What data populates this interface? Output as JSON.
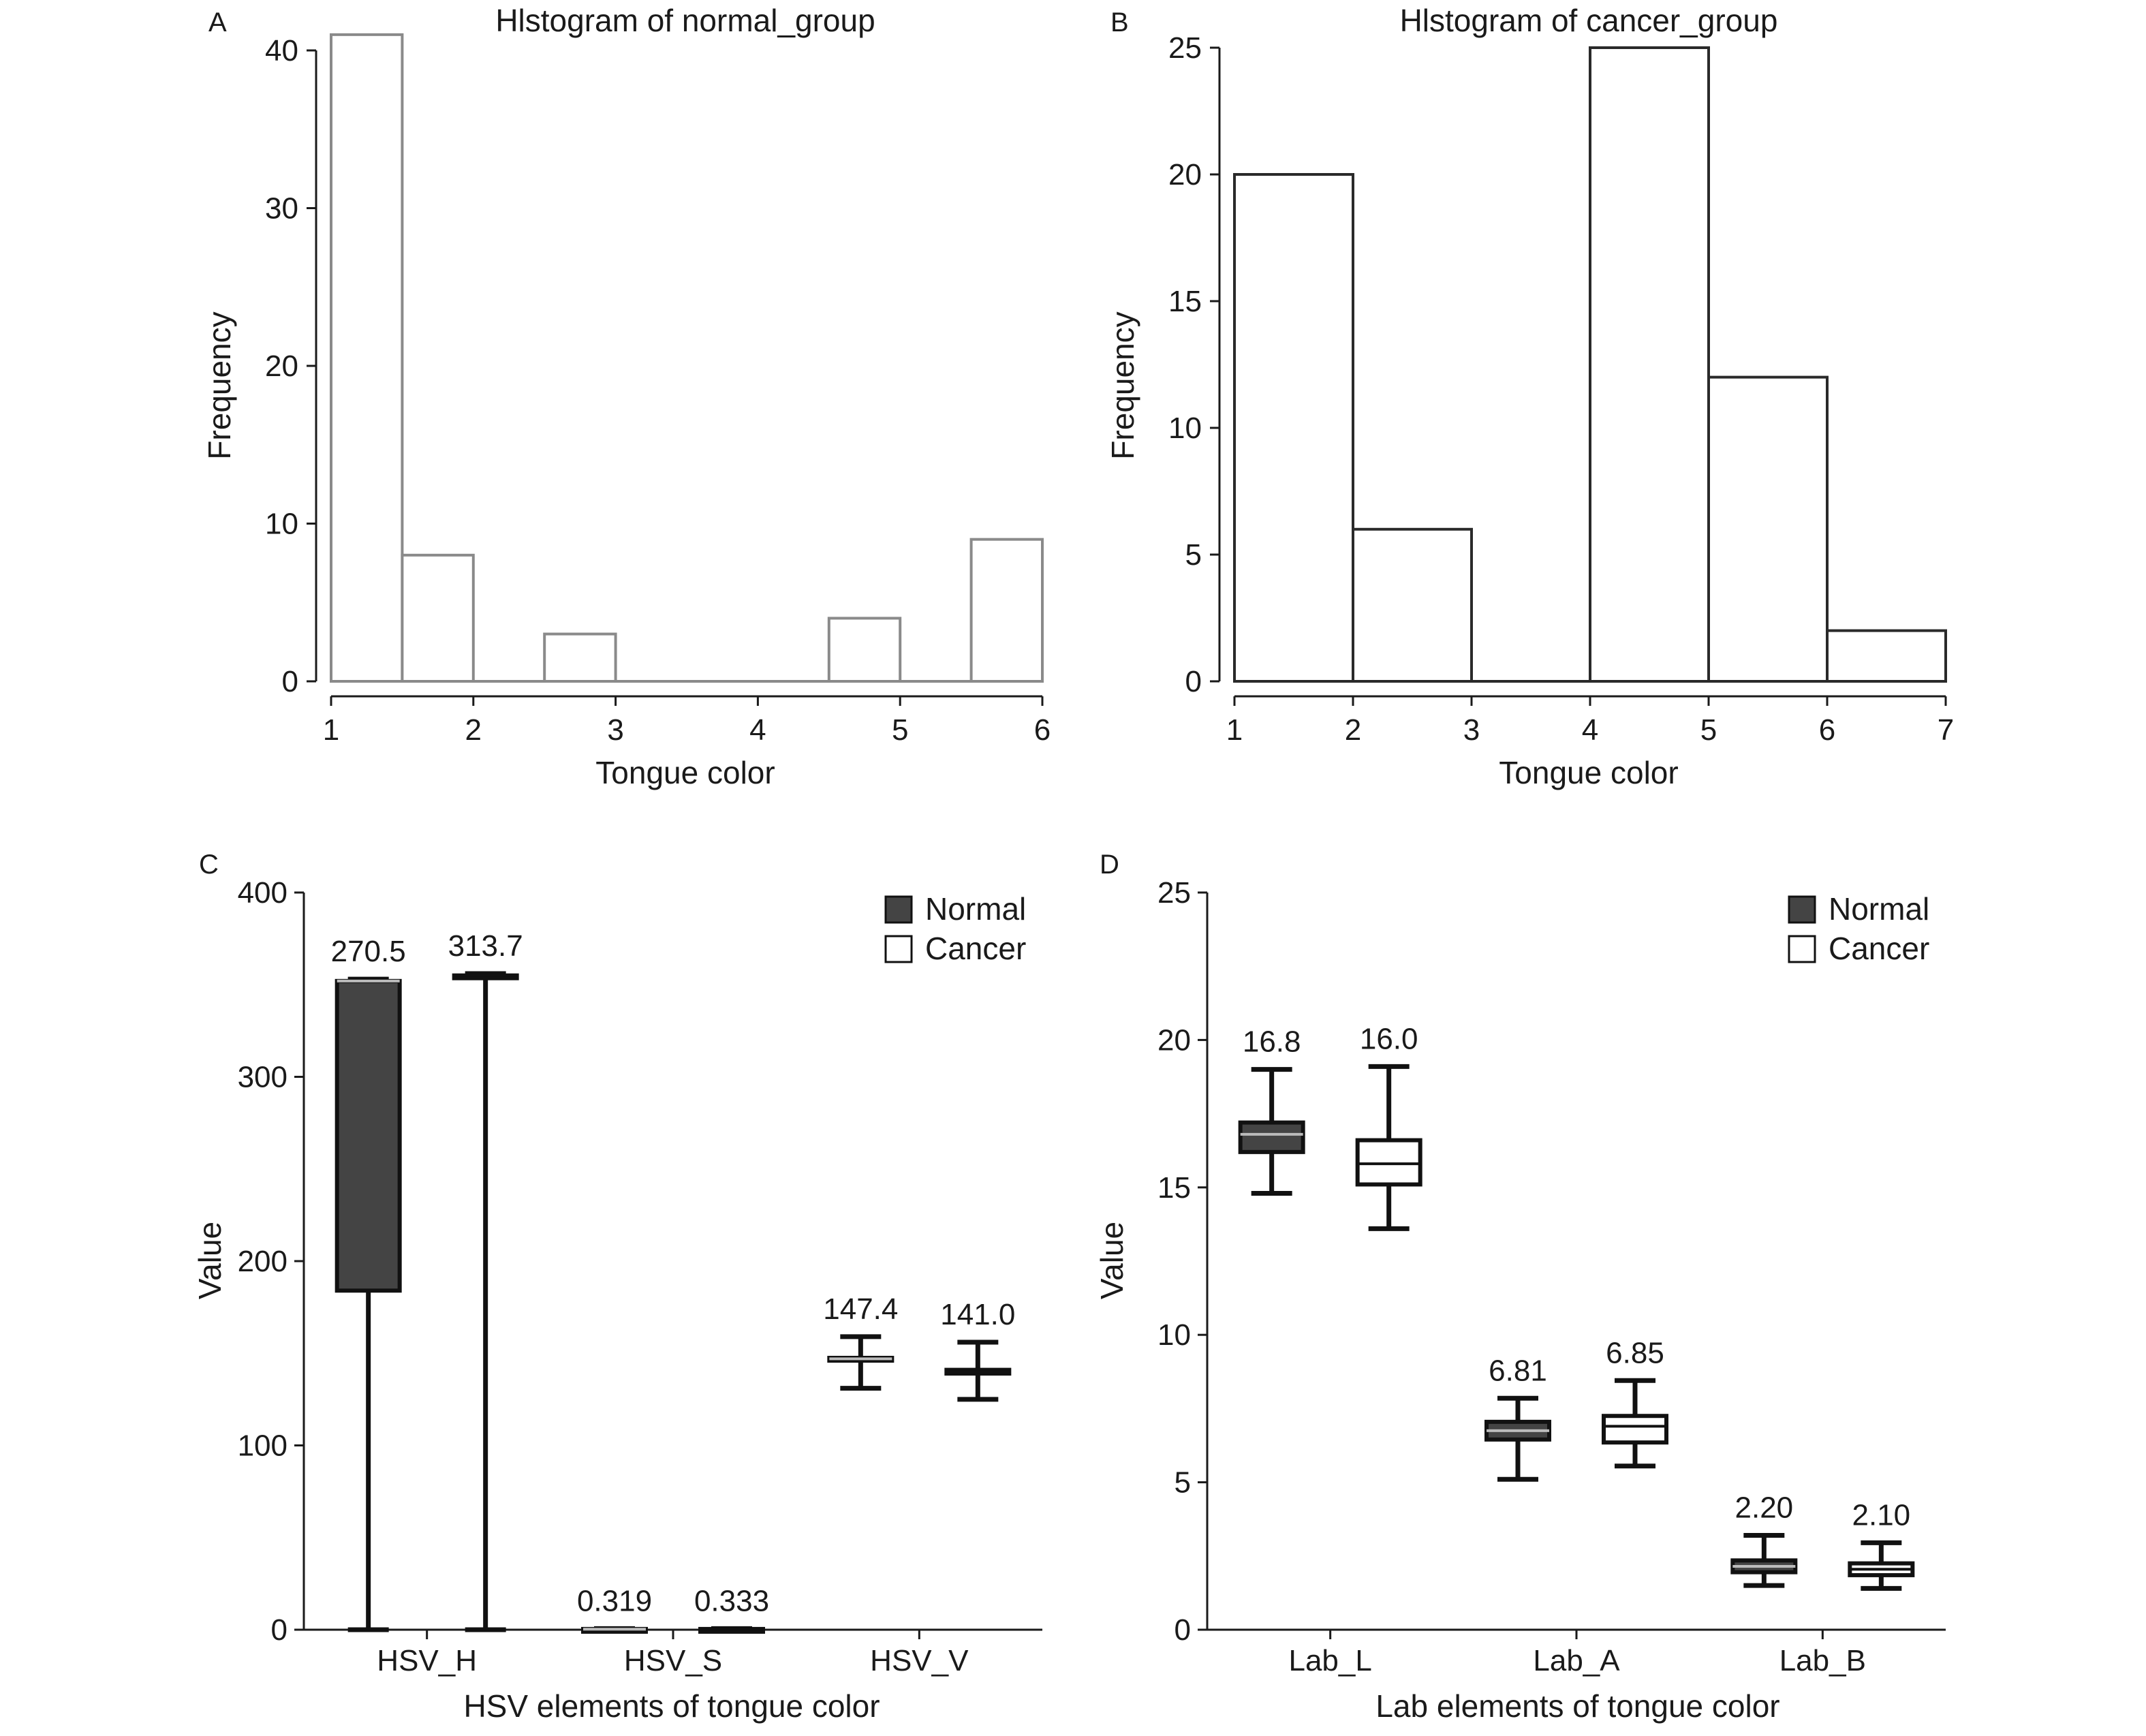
{
  "chart_data": [
    {
      "panel": "A",
      "type": "bar",
      "title": "Hlstogram of normal_group",
      "xlabel": "Tongue color",
      "ylabel": "Frequency",
      "xlim": [
        1,
        6
      ],
      "ylim": [
        0,
        40
      ],
      "x_ticks": [
        "1",
        "2",
        "3",
        "4",
        "5",
        "6"
      ],
      "y_ticks": [
        "0",
        "10",
        "20",
        "30",
        "40"
      ],
      "bin_width": 0.5,
      "bins": [
        1.0,
        1.5,
        2.0,
        2.5,
        3.0,
        3.5,
        4.0,
        4.5,
        5.0,
        5.5
      ],
      "values": [
        41,
        8,
        0,
        3,
        0,
        0,
        0,
        4,
        0,
        9
      ],
      "bar_color": "#8a8a8a"
    },
    {
      "panel": "B",
      "type": "bar",
      "title": "Hlstogram of cancer_group",
      "xlabel": "Tongue color",
      "ylabel": "Frequency",
      "xlim": [
        1,
        7
      ],
      "ylim": [
        0,
        25
      ],
      "x_ticks": [
        "1",
        "2",
        "3",
        "4",
        "5",
        "6",
        "7"
      ],
      "y_ticks": [
        "0",
        "5",
        "10",
        "15",
        "20",
        "25"
      ],
      "bin_width": 1,
      "bins": [
        1,
        2,
        3,
        4,
        5,
        6
      ],
      "values": [
        20,
        6,
        0,
        25,
        12,
        2
      ],
      "bar_color": "#2a2a2a"
    },
    {
      "panel": "C",
      "type": "box",
      "xlabel": "HSV elements of tongue color",
      "ylabel": "Value",
      "ylim": [
        0,
        400
      ],
      "y_ticks": [
        "0",
        "100",
        "200",
        "300",
        "400"
      ],
      "categories": [
        "HSV_H",
        "HSV_S",
        "HSV_V"
      ],
      "legend": [
        "Normal",
        "Cancer"
      ],
      "legend_position": "top-right",
      "series_colors": {
        "Normal": "#444444",
        "Cancer": "#ffffff"
      },
      "boxes": [
        {
          "category": "HSV_H",
          "series": "Normal",
          "label": "270.5",
          "min": 0,
          "q1": 184,
          "median": 352,
          "q3": 352,
          "max": 353
        },
        {
          "category": "HSV_H",
          "series": "Cancer",
          "label": "313.7",
          "min": 0,
          "q1": 355,
          "median": 355,
          "q3": 355,
          "max": 356
        },
        {
          "category": "HSV_S",
          "series": "Normal",
          "label": "0.319",
          "min": 0.1,
          "q1": 0.2,
          "median": 0.3,
          "q3": 0.4,
          "max": 0.6
        },
        {
          "category": "HSV_S",
          "series": "Cancer",
          "label": "0.333",
          "min": 0.1,
          "q1": 0.2,
          "median": 0.33,
          "q3": 0.4,
          "max": 0.6
        },
        {
          "category": "HSV_V",
          "series": "Normal",
          "label": "147.4",
          "min": 131,
          "q1": 146,
          "median": 147,
          "q3": 147.5,
          "max": 159
        },
        {
          "category": "HSV_V",
          "series": "Cancer",
          "label": "141.0",
          "min": 125,
          "q1": 139,
          "median": 140,
          "q3": 141,
          "max": 156
        }
      ]
    },
    {
      "panel": "D",
      "type": "box",
      "xlabel": "Lab elements of tongue color",
      "ylabel": "Value",
      "ylim": [
        0,
        25
      ],
      "y_ticks": [
        "0",
        "5",
        "10",
        "15",
        "20",
        "25"
      ],
      "categories": [
        "Lab_L",
        "Lab_A",
        "Lab_B"
      ],
      "legend": [
        "Normal",
        "Cancer"
      ],
      "legend_position": "top-right",
      "series_colors": {
        "Normal": "#444444",
        "Cancer": "#ffffff"
      },
      "boxes": [
        {
          "category": "Lab_L",
          "series": "Normal",
          "label": "16.8",
          "min": 14.8,
          "q1": 16.2,
          "median": 16.8,
          "q3": 17.2,
          "max": 19.0
        },
        {
          "category": "Lab_L",
          "series": "Cancer",
          "label": "16.0",
          "min": 13.6,
          "q1": 15.1,
          "median": 15.8,
          "q3": 16.6,
          "max": 19.1
        },
        {
          "category": "Lab_A",
          "series": "Normal",
          "label": "6.81",
          "min": 5.1,
          "q1": 6.45,
          "median": 6.75,
          "q3": 7.05,
          "max": 7.85
        },
        {
          "category": "Lab_A",
          "series": "Cancer",
          "label": "6.85",
          "min": 5.55,
          "q1": 6.35,
          "median": 6.9,
          "q3": 7.25,
          "max": 8.45
        },
        {
          "category": "Lab_B",
          "series": "Normal",
          "label": "2.20",
          "min": 1.5,
          "q1": 1.95,
          "median": 2.15,
          "q3": 2.35,
          "max": 3.2
        },
        {
          "category": "Lab_B",
          "series": "Cancer",
          "label": "2.10",
          "min": 1.4,
          "q1": 1.85,
          "median": 2.05,
          "q3": 2.25,
          "max": 2.95
        }
      ]
    }
  ]
}
